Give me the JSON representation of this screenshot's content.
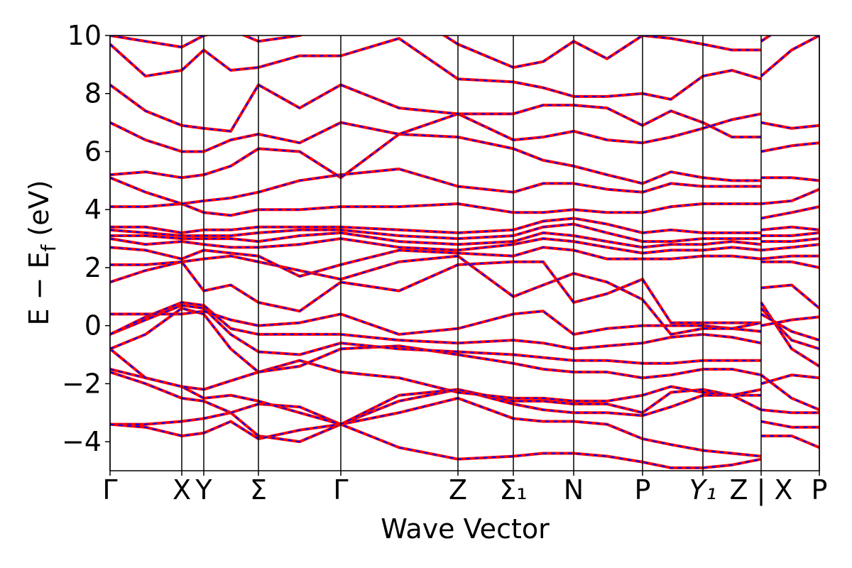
{
  "chart_data": {
    "type": "band-structure",
    "xlabel": "Wave Vector",
    "ylabel": [
      "E − E",
      "f",
      "(eV)"
    ],
    "xlim": [
      0,
      9.99
    ],
    "ylim": [
      -5,
      10
    ],
    "yticks": [
      {
        "value": -4,
        "label": "−4"
      },
      {
        "value": -2,
        "label": "−2"
      },
      0,
      2,
      4,
      6,
      8,
      10
    ],
    "xticks": [
      {
        "value": 0,
        "label": "Γ"
      },
      {
        "value": 1.01,
        "label": "X"
      },
      {
        "value": 1.32,
        "label": "Y"
      },
      {
        "value": 2.09,
        "label": "Σ"
      },
      {
        "value": 3.25,
        "label": "Γ"
      },
      {
        "value": 4.9,
        "label": "Z"
      },
      {
        "value": 5.68,
        "label": "Σ₁"
      },
      {
        "value": 6.53,
        "label": "N"
      },
      {
        "value": 7.5,
        "label": "P"
      },
      {
        "value": 8.35,
        "label": "Y₁"
      },
      {
        "value": 9.17,
        "label": "Z | X"
      },
      {
        "value": 9.99,
        "label": "P"
      }
    ],
    "line_color": "#ff0000",
    "dash_color": "#0000ff",
    "x": [
      0,
      0.5,
      1.01,
      1.32,
      1.7,
      2.09,
      2.67,
      3.25,
      4.07,
      4.9,
      5.68,
      6.1,
      6.53,
      7.0,
      7.5,
      7.9,
      8.35,
      8.76,
      9.17,
      9.17,
      9.17,
      9.6,
      9.99
    ],
    "bands": [
      [
        -3.4,
        -3.4,
        -3.3,
        -3.2,
        -3.0,
        -3.8,
        -4.0,
        -3.4,
        -4.2,
        -4.6,
        -4.5,
        -4.4,
        -4.4,
        -4.5,
        -4.7,
        -4.9,
        -4.9,
        -4.8,
        -4.6,
        null,
        -3.8,
        -3.8,
        -4.2
      ],
      [
        -3.4,
        -3.5,
        -3.8,
        -3.7,
        -3.3,
        -3.9,
        -3.6,
        -3.4,
        -3.0,
        -2.5,
        -3.2,
        -3.3,
        -3.3,
        -3.4,
        -3.9,
        -4.1,
        -4.3,
        -4.4,
        -4.5,
        null,
        -3.3,
        -3.5,
        -3.5
      ],
      [
        -1.6,
        -2.0,
        -2.5,
        -2.6,
        -3.0,
        -2.7,
        -2.8,
        -3.4,
        -2.6,
        -2.2,
        -2.7,
        -2.9,
        -3.0,
        -3.0,
        -3.1,
        -2.8,
        -2.4,
        -2.4,
        -2.9,
        null,
        -2.9,
        -3.0,
        -3.0
      ],
      [
        -1.5,
        -1.8,
        -2.1,
        -2.5,
        -2.4,
        -2.6,
        -3.0,
        -3.4,
        -2.4,
        -2.2,
        -2.6,
        -2.6,
        -2.7,
        -2.7,
        -3.0,
        -2.3,
        -2.2,
        -2.4,
        -2.4,
        null,
        -2.0,
        -1.7,
        -1.8
      ],
      [
        -0.8,
        -1.8,
        -2.1,
        -2.2,
        -1.9,
        -1.6,
        -1.2,
        -1.6,
        -1.8,
        -2.3,
        -2.5,
        -2.5,
        -2.6,
        -2.6,
        -2.4,
        -2.1,
        -2.3,
        -2.4,
        -2.2,
        null,
        -1.7,
        -2.5,
        -2.9
      ],
      [
        -0.8,
        -0.3,
        0.6,
        0.4,
        -0.8,
        -1.6,
        -1.4,
        -0.8,
        -0.7,
        -1.0,
        -1.3,
        -1.5,
        -1.6,
        -1.6,
        -1.8,
        -1.7,
        -1.5,
        -1.5,
        -1.7,
        null,
        0.8,
        -0.8,
        -1.4
      ],
      [
        -0.3,
        0.2,
        0.7,
        0.6,
        -0.3,
        -0.9,
        -1.0,
        -0.6,
        -0.8,
        -0.9,
        -1.0,
        -1.1,
        -1.2,
        -1.2,
        -1.3,
        -1.3,
        -1.2,
        -1.2,
        -1.2,
        null,
        0.6,
        -0.5,
        -0.8
      ],
      [
        -0.3,
        0.3,
        0.8,
        0.7,
        -0.1,
        -0.3,
        -0.3,
        -0.3,
        -0.5,
        -0.6,
        -0.5,
        -0.6,
        -0.8,
        -0.7,
        -0.6,
        -0.4,
        -0.3,
        -0.4,
        -0.6,
        null,
        0.4,
        -0.2,
        -0.5
      ],
      [
        0.4,
        0.4,
        0.4,
        0.5,
        0.2,
        0.0,
        0.1,
        0.4,
        -0.3,
        -0.1,
        0.4,
        0.5,
        -0.3,
        -0.1,
        0.0,
        0.0,
        0.0,
        -0.1,
        -0.2,
        null,
        0.0,
        0.2,
        0.3
      ],
      [
        1.5,
        1.9,
        2.2,
        1.2,
        1.4,
        0.8,
        0.5,
        1.5,
        1.2,
        2.1,
        2.2,
        2.2,
        0.8,
        1.1,
        1.6,
        0.1,
        0.1,
        0.1,
        0.1,
        null,
        1.3,
        1.4,
        0.6
      ],
      [
        2.1,
        2.1,
        2.2,
        2.3,
        2.4,
        2.2,
        1.9,
        1.6,
        2.2,
        2.4,
        1.0,
        1.4,
        1.8,
        1.5,
        0.9,
        -0.3,
        -0.1,
        -0.1,
        0.1,
        null,
        2.2,
        2.2,
        2.0
      ],
      [
        2.7,
        2.6,
        2.3,
        2.6,
        2.5,
        2.4,
        1.7,
        2.1,
        2.6,
        2.5,
        2.4,
        2.7,
        2.6,
        2.3,
        2.3,
        2.3,
        2.4,
        2.4,
        2.3,
        null,
        2.3,
        2.4,
        2.4
      ],
      [
        3.0,
        2.8,
        2.9,
        2.8,
        2.7,
        2.7,
        2.8,
        3.0,
        2.7,
        2.6,
        2.8,
        3.0,
        2.9,
        2.7,
        2.5,
        2.6,
        2.6,
        2.7,
        2.6,
        null,
        2.6,
        2.7,
        2.8
      ],
      [
        3.1,
        3.1,
        3.0,
        3.0,
        3.0,
        2.9,
        3.1,
        3.2,
        2.9,
        2.8,
        2.9,
        3.2,
        3.1,
        2.9,
        2.7,
        2.8,
        2.8,
        2.9,
        2.8,
        null,
        2.9,
        2.9,
        3.0
      ],
      [
        3.3,
        3.2,
        3.1,
        3.1,
        3.1,
        3.2,
        3.3,
        3.3,
        3.1,
        3.0,
        3.1,
        3.4,
        3.5,
        3.2,
        2.9,
        2.9,
        3.0,
        3.0,
        3.0,
        null,
        3.1,
        3.1,
        3.2
      ],
      [
        3.4,
        3.4,
        3.2,
        3.3,
        3.3,
        3.4,
        3.4,
        3.4,
        3.3,
        3.2,
        3.3,
        3.6,
        3.7,
        3.5,
        3.2,
        3.3,
        3.2,
        3.2,
        3.2,
        null,
        3.3,
        3.4,
        3.3
      ],
      [
        4.1,
        4.1,
        4.2,
        3.9,
        3.8,
        4.0,
        4.0,
        4.1,
        4.1,
        4.2,
        3.9,
        3.9,
        4.0,
        3.9,
        3.9,
        4.1,
        4.2,
        4.2,
        4.2,
        null,
        3.7,
        3.9,
        4.1
      ],
      [
        5.1,
        4.6,
        4.2,
        4.3,
        4.4,
        4.6,
        5.0,
        5.2,
        5.4,
        4.8,
        4.6,
        4.9,
        4.9,
        4.7,
        4.6,
        4.9,
        4.8,
        4.8,
        4.8,
        null,
        4.2,
        4.3,
        4.7
      ],
      [
        5.2,
        5.3,
        5.1,
        5.2,
        5.5,
        6.1,
        6.0,
        5.1,
        6.6,
        6.5,
        6.1,
        5.7,
        5.5,
        5.2,
        4.9,
        5.3,
        5.1,
        5.0,
        5.0,
        null,
        5.1,
        5.1,
        5.0
      ],
      [
        7.0,
        6.4,
        6.0,
        6.0,
        6.4,
        6.6,
        6.3,
        7.0,
        6.6,
        7.3,
        6.4,
        6.5,
        6.7,
        6.4,
        6.3,
        6.5,
        6.8,
        7.1,
        7.3,
        null,
        6.0,
        6.2,
        6.3
      ],
      [
        8.3,
        7.4,
        6.9,
        6.8,
        6.7,
        8.3,
        7.5,
        8.3,
        7.5,
        7.3,
        7.3,
        7.6,
        7.6,
        7.5,
        6.9,
        7.4,
        7.0,
        6.5,
        6.5,
        null,
        7.0,
        6.8,
        6.9
      ],
      [
        9.7,
        8.6,
        8.8,
        9.5,
        8.8,
        8.9,
        9.3,
        9.3,
        9.9,
        8.5,
        8.4,
        8.2,
        7.9,
        7.9,
        8.0,
        7.8,
        8.6,
        8.8,
        8.5,
        null,
        8.6,
        9.5,
        10.0
      ],
      [
        10.0,
        9.8,
        9.6,
        10.0,
        10.2,
        9.8,
        10.0,
        10.5,
        11.0,
        9.7,
        8.9,
        9.1,
        9.8,
        9.2,
        10.0,
        9.9,
        9.7,
        9.5,
        9.5,
        null,
        9.8,
        10.5,
        10.5
      ]
    ]
  }
}
